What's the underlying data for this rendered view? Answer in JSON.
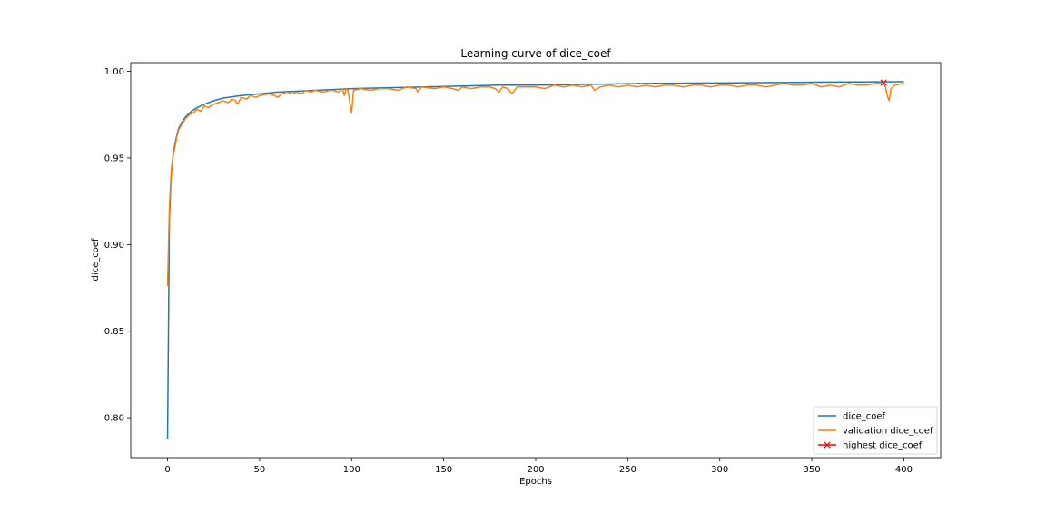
{
  "chart_data": {
    "type": "line",
    "title": "Learning curve of dice_coef",
    "xlabel": "Epochs",
    "ylabel": "dice_coef",
    "xlim": [
      -20,
      420
    ],
    "ylim": [
      0.777,
      1.005
    ],
    "xticks": [
      0,
      50,
      100,
      150,
      200,
      250,
      300,
      350,
      400
    ],
    "yticks": [
      0.8,
      0.85,
      0.9,
      0.95,
      1.0
    ],
    "ytick_labels": [
      "0.80",
      "0.85",
      "0.90",
      "0.95",
      "1.00"
    ],
    "grid": false,
    "legend_position": "lower-right",
    "series": [
      {
        "name": "dice_coef",
        "color": "#1f77b4",
        "points": [
          [
            0,
            0.788
          ],
          [
            1,
            0.915
          ],
          [
            2,
            0.94
          ],
          [
            3,
            0.952
          ],
          [
            4,
            0.958
          ],
          [
            5,
            0.963
          ],
          [
            6,
            0.967
          ],
          [
            8,
            0.971
          ],
          [
            10,
            0.974
          ],
          [
            13,
            0.977
          ],
          [
            16,
            0.979
          ],
          [
            20,
            0.981
          ],
          [
            25,
            0.983
          ],
          [
            30,
            0.9845
          ],
          [
            40,
            0.986
          ],
          [
            50,
            0.987
          ],
          [
            60,
            0.988
          ],
          [
            70,
            0.9885
          ],
          [
            80,
            0.989
          ],
          [
            90,
            0.9895
          ],
          [
            100,
            0.99
          ],
          [
            120,
            0.9905
          ],
          [
            140,
            0.991
          ],
          [
            160,
            0.9915
          ],
          [
            180,
            0.992
          ],
          [
            200,
            0.992
          ],
          [
            230,
            0.9925
          ],
          [
            260,
            0.993
          ],
          [
            300,
            0.9933
          ],
          [
            350,
            0.9937
          ],
          [
            400,
            0.994
          ]
        ]
      },
      {
        "name": "validation dice_coef",
        "color": "#ff7f0e",
        "points": [
          [
            0,
            0.876
          ],
          [
            1,
            0.922
          ],
          [
            2,
            0.943
          ],
          [
            3,
            0.951
          ],
          [
            4,
            0.956
          ],
          [
            5,
            0.962
          ],
          [
            6,
            0.966
          ],
          [
            8,
            0.97
          ],
          [
            10,
            0.973
          ],
          [
            12,
            0.975
          ],
          [
            14,
            0.976
          ],
          [
            16,
            0.978
          ],
          [
            18,
            0.977
          ],
          [
            20,
            0.98
          ],
          [
            22,
            0.979
          ],
          [
            25,
            0.981
          ],
          [
            28,
            0.982
          ],
          [
            30,
            0.983
          ],
          [
            33,
            0.982
          ],
          [
            35,
            0.984
          ],
          [
            37,
            0.983
          ],
          [
            38,
            0.981
          ],
          [
            40,
            0.985
          ],
          [
            43,
            0.984
          ],
          [
            45,
            0.986
          ],
          [
            48,
            0.985
          ],
          [
            50,
            0.986
          ],
          [
            55,
            0.987
          ],
          [
            58,
            0.986
          ],
          [
            60,
            0.985
          ],
          [
            62,
            0.987
          ],
          [
            65,
            0.988
          ],
          [
            68,
            0.987
          ],
          [
            70,
            0.988
          ],
          [
            73,
            0.987
          ],
          [
            75,
            0.989
          ],
          [
            78,
            0.988
          ],
          [
            80,
            0.989
          ],
          [
            85,
            0.988
          ],
          [
            88,
            0.989
          ],
          [
            90,
            0.989
          ],
          [
            93,
            0.988
          ],
          [
            95,
            0.99
          ],
          [
            96,
            0.986
          ],
          [
            97,
            0.99
          ],
          [
            98,
            0.989
          ],
          [
            99,
            0.982
          ],
          [
            100,
            0.976
          ],
          [
            101,
            0.989
          ],
          [
            105,
            0.99
          ],
          [
            110,
            0.989
          ],
          [
            115,
            0.99
          ],
          [
            120,
            0.99
          ],
          [
            125,
            0.989
          ],
          [
            130,
            0.991
          ],
          [
            135,
            0.99
          ],
          [
            136,
            0.988
          ],
          [
            138,
            0.991
          ],
          [
            145,
            0.99
          ],
          [
            150,
            0.991
          ],
          [
            155,
            0.99
          ],
          [
            158,
            0.989
          ],
          [
            160,
            0.991
          ],
          [
            165,
            0.99
          ],
          [
            170,
            0.991
          ],
          [
            175,
            0.991
          ],
          [
            178,
            0.99
          ],
          [
            180,
            0.988
          ],
          [
            182,
            0.991
          ],
          [
            185,
            0.99
          ],
          [
            187,
            0.987
          ],
          [
            190,
            0.991
          ],
          [
            195,
            0.991
          ],
          [
            200,
            0.991
          ],
          [
            205,
            0.99
          ],
          [
            210,
            0.992
          ],
          [
            215,
            0.991
          ],
          [
            220,
            0.992
          ],
          [
            225,
            0.991
          ],
          [
            230,
            0.992
          ],
          [
            232,
            0.989
          ],
          [
            235,
            0.991
          ],
          [
            240,
            0.992
          ],
          [
            245,
            0.991
          ],
          [
            250,
            0.992
          ],
          [
            255,
            0.991
          ],
          [
            260,
            0.992
          ],
          [
            265,
            0.991
          ],
          [
            270,
            0.992
          ],
          [
            275,
            0.992
          ],
          [
            280,
            0.991
          ],
          [
            285,
            0.992
          ],
          [
            290,
            0.992
          ],
          [
            295,
            0.991
          ],
          [
            300,
            0.992
          ],
          [
            305,
            0.992
          ],
          [
            310,
            0.991
          ],
          [
            315,
            0.992
          ],
          [
            320,
            0.992
          ],
          [
            325,
            0.991
          ],
          [
            330,
            0.992
          ],
          [
            335,
            0.993
          ],
          [
            340,
            0.992
          ],
          [
            345,
            0.992
          ],
          [
            350,
            0.993
          ],
          [
            355,
            0.991
          ],
          [
            360,
            0.992
          ],
          [
            365,
            0.991
          ],
          [
            370,
            0.993
          ],
          [
            375,
            0.992
          ],
          [
            380,
            0.992
          ],
          [
            385,
            0.993
          ],
          [
            388,
            0.993
          ],
          [
            389,
            0.9935
          ],
          [
            390,
            0.991
          ],
          [
            391,
            0.986
          ],
          [
            392,
            0.983
          ],
          [
            393,
            0.99
          ],
          [
            395,
            0.992
          ],
          [
            400,
            0.993
          ]
        ]
      },
      {
        "name": "highest dice_coef",
        "color": "#ff0000",
        "marker": "x",
        "points": [
          [
            389,
            0.9935
          ]
        ]
      }
    ]
  }
}
